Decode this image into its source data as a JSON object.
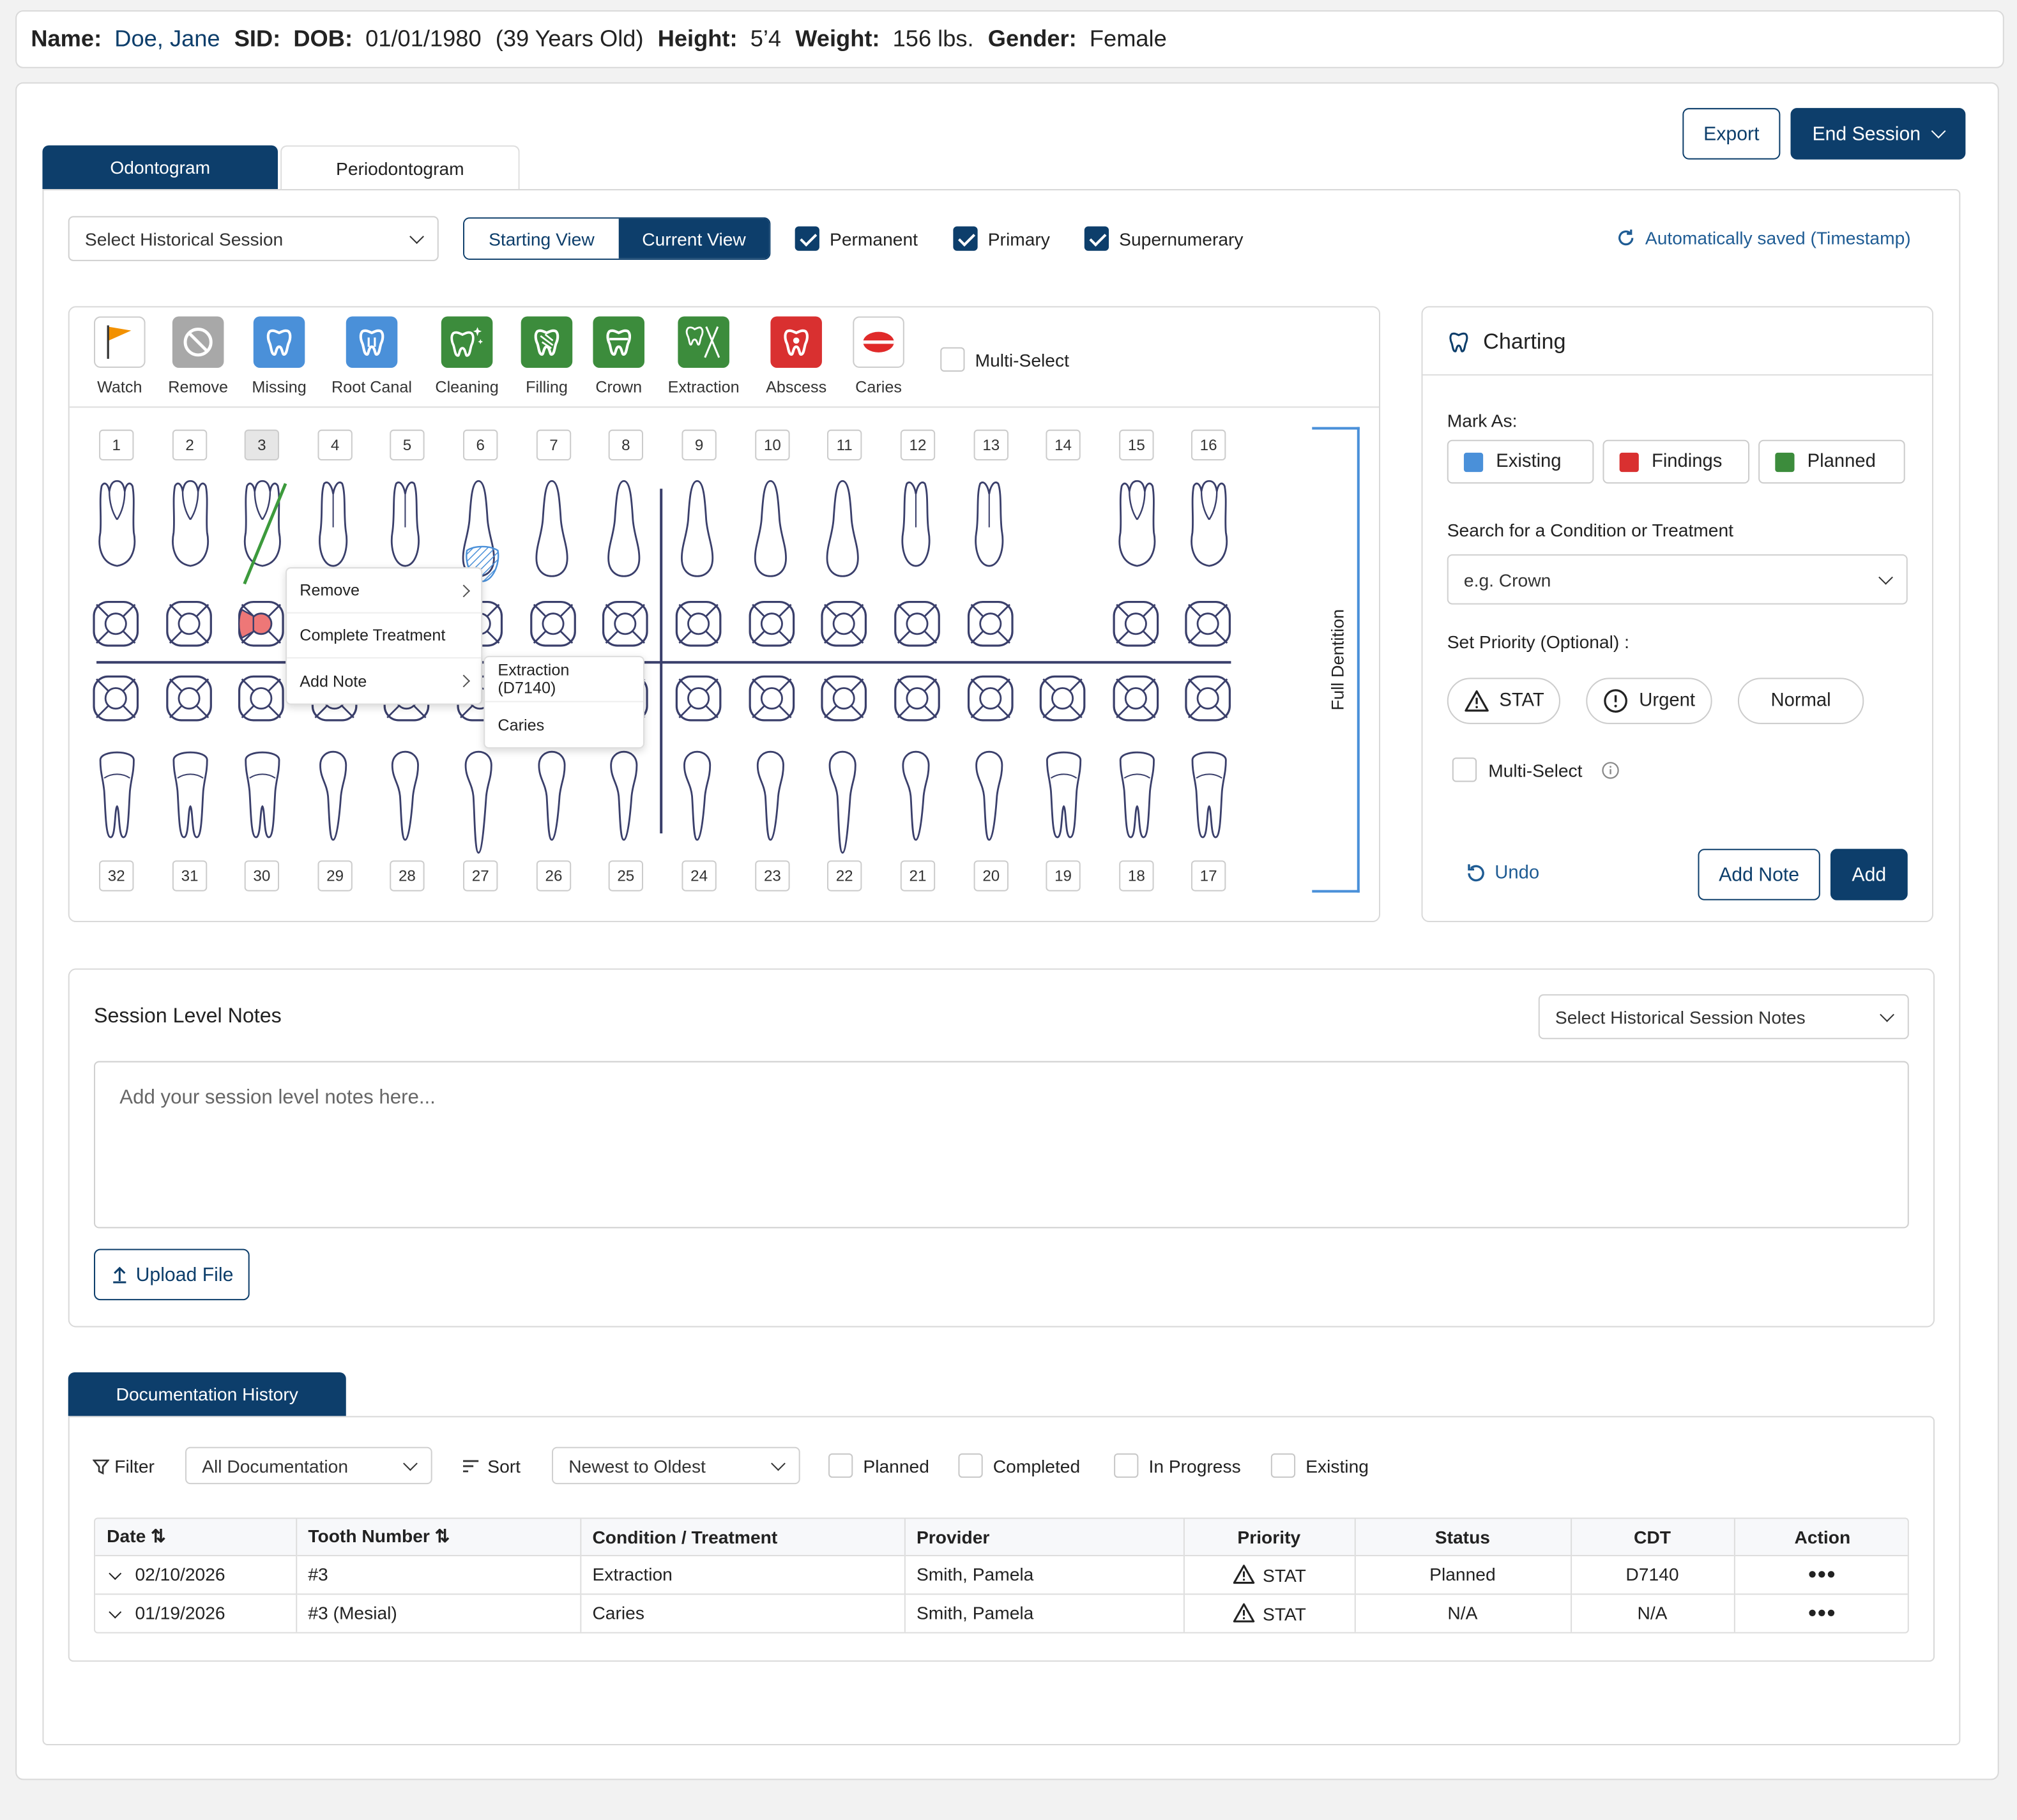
{
  "patient": {
    "name_label": "Name:",
    "name": "Doe, Jane",
    "sid_label": "SID:",
    "dob_label": "DOB:",
    "dob": "01/01/1980",
    "age": "(39 Years Old)",
    "height_label": "Height:",
    "height": "5’4",
    "weight_label": "Weight:",
    "weight": "156 lbs.",
    "gender_label": "Gender:",
    "gender": "Female"
  },
  "top_actions": {
    "export": "Export",
    "end_session": "End Session"
  },
  "tabs": [
    {
      "label": "Odontogram",
      "active": true
    },
    {
      "label": "Periodontogram",
      "active": false
    }
  ],
  "controls": {
    "historical_session": "Select Historical Session",
    "views": [
      "Starting View",
      "Current View"
    ],
    "active_view": "Current View",
    "checks": [
      {
        "label": "Permanent",
        "checked": true
      },
      {
        "label": "Primary",
        "checked": true
      },
      {
        "label": "Supernumerary",
        "checked": true
      }
    ],
    "autosave": "Automatically saved (Timestamp)"
  },
  "tools": [
    {
      "label": "Watch",
      "icon": "flag-icon",
      "color": "#ffffff"
    },
    {
      "label": "Remove",
      "icon": "remove-icon",
      "color": "#a8a8a8"
    },
    {
      "label": "Missing",
      "icon": "tooth-icon",
      "color": "#4a90d9"
    },
    {
      "label": "Root Canal",
      "icon": "root-canal-icon",
      "color": "#4a90d9"
    },
    {
      "label": "Cleaning",
      "icon": "cleaning-icon",
      "color": "#3c8c3c"
    },
    {
      "label": "Filling",
      "icon": "filling-icon",
      "color": "#3c8c3c"
    },
    {
      "label": "Crown",
      "icon": "crown-icon",
      "color": "#3c8c3c"
    },
    {
      "label": "Extraction",
      "icon": "extraction-icon",
      "color": "#3c8c3c"
    },
    {
      "label": "Abscess",
      "icon": "abscess-icon",
      "color": "#d93030"
    },
    {
      "label": "Caries",
      "icon": "caries-icon",
      "color": "#ffffff"
    }
  ],
  "multi_select": "Multi-Select",
  "upper_teeth": [
    "1",
    "2",
    "3",
    "4",
    "5",
    "6",
    "7",
    "8",
    "9",
    "10",
    "11",
    "12",
    "13",
    "14",
    "15",
    "16"
  ],
  "lower_teeth": [
    "32",
    "31",
    "30",
    "29",
    "28",
    "27",
    "26",
    "25",
    "24",
    "23",
    "22",
    "21",
    "20",
    "19",
    "18",
    "17"
  ],
  "dentition_label": "Full Dentition",
  "context_menu": {
    "items": [
      "Remove",
      "Complete Treatment",
      "Add Note"
    ],
    "submenu": [
      "Extraction (D7140)",
      "Caries"
    ]
  },
  "charting": {
    "title": "Charting",
    "mark_as": "Mark As:",
    "marks": [
      {
        "label": "Existing",
        "color": "#4a90d9"
      },
      {
        "label": "Findings",
        "color": "#d93030"
      },
      {
        "label": "Planned",
        "color": "#3c8c3c"
      }
    ],
    "search_label": "Search for a Condition or Treatment",
    "search_placeholder": "e.g. Crown",
    "priority_label": "Set Priority (Optional) :",
    "priorities": [
      "STAT",
      "Urgent",
      "Normal"
    ],
    "multi_select": "Multi-Select",
    "undo": "Undo",
    "add_note": "Add Note",
    "add": "Add"
  },
  "notes": {
    "title": "Session Level Notes",
    "historical": "Select Historical Session Notes",
    "placeholder": "Add your session level notes here...",
    "upload": "Upload File"
  },
  "history": {
    "tab": "Documentation History",
    "filter": "Filter",
    "filter_value": "All Documentation",
    "sort": "Sort",
    "sort_value": "Newest to Oldest",
    "checks": [
      "Planned",
      "Completed",
      "In Progress",
      "Existing"
    ],
    "columns": [
      "Date",
      "Tooth Number",
      "Condition / Treatment",
      "Provider",
      "Priority",
      "Status",
      "CDT",
      "Action"
    ],
    "rows": [
      {
        "date": "02/10/2026",
        "tooth": "#3",
        "condition": "Extraction",
        "provider": "Smith, Pamela",
        "priority": "STAT",
        "status": "Planned",
        "cdt": "D7140"
      },
      {
        "date": "01/19/2026",
        "tooth": "#3 (Mesial)",
        "condition": "Caries",
        "provider": "Smith, Pamela",
        "priority": "STAT",
        "status": "N/A",
        "cdt": "N/A"
      }
    ]
  }
}
